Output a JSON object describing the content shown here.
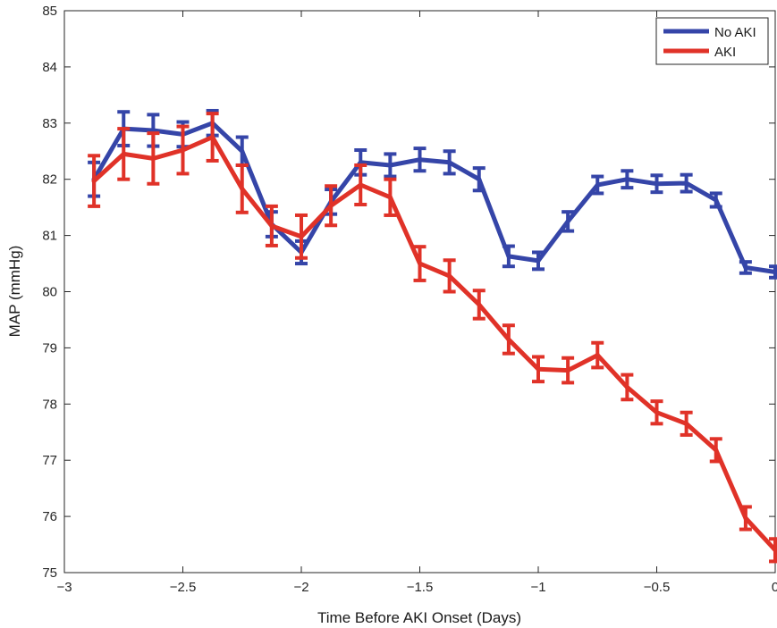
{
  "chart_data": {
    "type": "line",
    "title": "",
    "xlabel": "Time Before AKI Onset (Days)",
    "ylabel": "MAP (mmHg)",
    "xlim": [
      -3,
      0
    ],
    "ylim": [
      75,
      85
    ],
    "xticks": [
      -3,
      -2.5,
      -2,
      -1.5,
      -1,
      -0.5,
      0
    ],
    "xtick_labels": [
      "−3",
      "−2.5",
      "−2",
      "−1.5",
      "−1",
      "−0.5",
      "0"
    ],
    "yticks": [
      75,
      76,
      77,
      78,
      79,
      80,
      81,
      82,
      83,
      84,
      85
    ],
    "ytick_labels": [
      "75",
      "76",
      "77",
      "78",
      "79",
      "80",
      "81",
      "82",
      "83",
      "84",
      "85"
    ],
    "grid": false,
    "legend_position": "top-right",
    "x": [
      -2.875,
      -2.75,
      -2.625,
      -2.5,
      -2.375,
      -2.25,
      -2.125,
      -2.0,
      -1.875,
      -1.75,
      -1.625,
      -1.5,
      -1.375,
      -1.25,
      -1.125,
      -1.0,
      -0.875,
      -0.75,
      -0.625,
      -0.5,
      -0.375,
      -0.25,
      -0.125,
      0.0
    ],
    "series": [
      {
        "name": "No AKI",
        "color": "#3545a8",
        "values": [
          82.0,
          82.9,
          82.87,
          82.8,
          83.0,
          82.5,
          81.2,
          80.7,
          81.6,
          82.3,
          82.25,
          82.35,
          82.3,
          82.0,
          80.63,
          80.55,
          81.25,
          81.9,
          82.0,
          81.92,
          81.93,
          81.63,
          80.43,
          80.35
        ],
        "errors": [
          0.3,
          0.3,
          0.28,
          0.22,
          0.22,
          0.25,
          0.22,
          0.2,
          0.22,
          0.22,
          0.2,
          0.2,
          0.2,
          0.2,
          0.18,
          0.15,
          0.17,
          0.15,
          0.15,
          0.15,
          0.15,
          0.12,
          0.1,
          0.1
        ]
      },
      {
        "name": "AKI",
        "color": "#e03228",
        "values": [
          81.97,
          82.45,
          82.37,
          82.52,
          82.75,
          81.83,
          81.17,
          80.98,
          81.53,
          81.9,
          81.68,
          80.5,
          80.28,
          79.77,
          79.15,
          78.62,
          78.6,
          78.87,
          78.3,
          77.85,
          77.65,
          77.18,
          75.97,
          75.4
        ]
      }
    ],
    "aki_errors": [
      0.45,
      0.45,
      0.45,
      0.42,
      0.42,
      0.42,
      0.35,
      0.38,
      0.35,
      0.35,
      0.32,
      0.3,
      0.28,
      0.25,
      0.25,
      0.22,
      0.22,
      0.22,
      0.22,
      0.2,
      0.2,
      0.2,
      0.2,
      0.2
    ]
  }
}
